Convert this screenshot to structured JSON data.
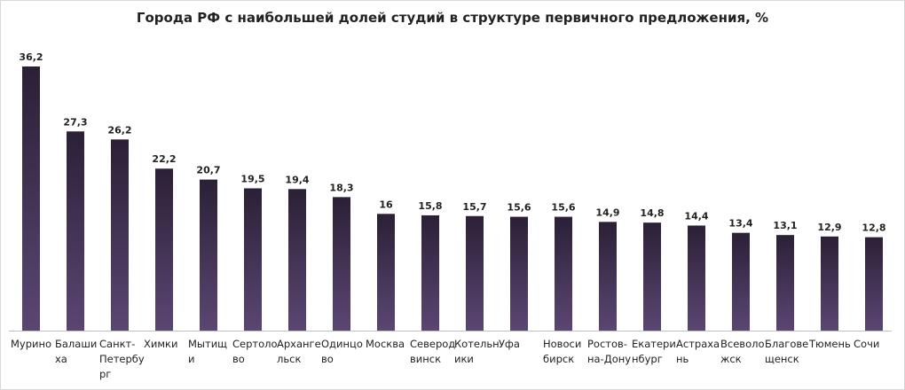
{
  "chart_data": {
    "type": "bar",
    "title": "Города РФ с наибольшей долей студий в структуре первичного предложения, %",
    "xlabel": "",
    "ylabel": "",
    "ylim": [
      0,
      37
    ],
    "grid": false,
    "legend": "none",
    "categories": [
      "Мурино",
      "Балашиха",
      "Санкт-Петербург",
      "Химки",
      "Мытищи",
      "Сертолово",
      "Архангельск",
      "Одинцово",
      "Москва",
      "Северодвинск",
      "Котельники",
      "Уфа",
      "Новосибирск",
      "Ростов-на-Дону",
      "Екатеринбург",
      "Астрахань",
      "Всеволожск",
      "Благовещенск",
      "Тюмень",
      "Сочи"
    ],
    "label_lines": [
      [
        "Мурино"
      ],
      [
        "Балаши",
        "ха"
      ],
      [
        "Санкт-",
        "Петербу",
        "рг"
      ],
      [
        "Химки"
      ],
      [
        "Мытищ",
        "и"
      ],
      [
        "Сертоло",
        "во"
      ],
      [
        "Архангe",
        "льск"
      ],
      [
        "Одинцо",
        "во"
      ],
      [
        "Москва"
      ],
      [
        "Северод",
        "винск"
      ],
      [
        "Котельн",
        "ики"
      ],
      [
        "Уфа"
      ],
      [
        "Новоси",
        "бирск"
      ],
      [
        "Ростов-",
        "на-Дону"
      ],
      [
        "Екатери",
        "нбург"
      ],
      [
        "Астраха",
        "нь"
      ],
      [
        "Всеволо",
        "жск"
      ],
      [
        "Благове",
        "щенск"
      ],
      [
        "Тюмень"
      ],
      [
        "Сочи"
      ]
    ],
    "values": [
      36.2,
      27.3,
      26.2,
      22.2,
      20.7,
      19.5,
      19.4,
      18.3,
      16,
      15.8,
      15.7,
      15.6,
      15.6,
      14.9,
      14.8,
      14.4,
      13.4,
      13.1,
      12.9,
      12.8
    ],
    "value_labels": [
      "36,2",
      "27,3",
      "26,2",
      "22,2",
      "20,7",
      "19,5",
      "19,4",
      "18,3",
      "16",
      "15,8",
      "15,7",
      "15,6",
      "15,6",
      "14,9",
      "14,8",
      "14,4",
      "13,4",
      "13,1",
      "12,9",
      "12,8"
    ]
  },
  "colors": {
    "bar_top": "#2b2036",
    "bar_bottom": "#5b4673",
    "axis": "#bfbfbf",
    "text": "#222222"
  }
}
